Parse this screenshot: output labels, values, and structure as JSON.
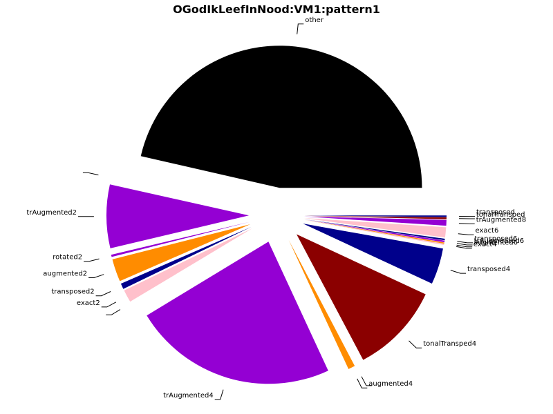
{
  "chart_data": {
    "type": "pie",
    "title": "OGodIkLeefInNood:VM1:pattern1",
    "slices": [
      {
        "label": "other",
        "value": 180.0,
        "color": "#000000"
      },
      {
        "label": "",
        "value": 0.3,
        "color": "#ffffff"
      },
      {
        "label": "trAugmented2",
        "value": 28.0,
        "color": "#9400d3"
      },
      {
        "label": "rotated2",
        "value": 1.0,
        "color": "#9400d3"
      },
      {
        "label": "augmented2",
        "value": 10.0,
        "color": "#ff8c00"
      },
      {
        "label": "transposed2",
        "value": 2.5,
        "color": "#00008b"
      },
      {
        "label": "exact2",
        "value": 5.5,
        "color": "#ffc0cb"
      },
      {
        "label": "",
        "value": 0.3,
        "color": "#ffffff"
      },
      {
        "label": "trAugmented4",
        "value": 90.0,
        "color": "#9400d3"
      },
      {
        "label": "augmented4",
        "value": 3.0,
        "color": "#ff8c00"
      },
      {
        "label": "",
        "value": 0.3,
        "color": "#ffffff"
      },
      {
        "label": "tonalTransped4",
        "value": 40.0,
        "color": "#8b0000"
      },
      {
        "label": "transposed4",
        "value": 16.0,
        "color": "#00008b"
      },
      {
        "label": "exact4",
        "value": 0.5,
        "color": "#ffc0cb"
      },
      {
        "label": "augmented6",
        "value": 0.5,
        "color": "#ff8c00"
      },
      {
        "label": "trAugmented6",
        "value": 0.7,
        "color": "#9400d3"
      },
      {
        "label": "transposed6",
        "value": 0.7,
        "color": "#00008b"
      },
      {
        "label": "exact6",
        "value": 4.5,
        "color": "#ffc0cb"
      },
      {
        "label": "trAugmented8",
        "value": 2.5,
        "color": "#9400d3"
      },
      {
        "label": "tonalTransped",
        "value": 0.8,
        "color": "#8b0000"
      },
      {
        "label": "transposed",
        "value": 0.7,
        "color": "#00008b"
      }
    ]
  }
}
